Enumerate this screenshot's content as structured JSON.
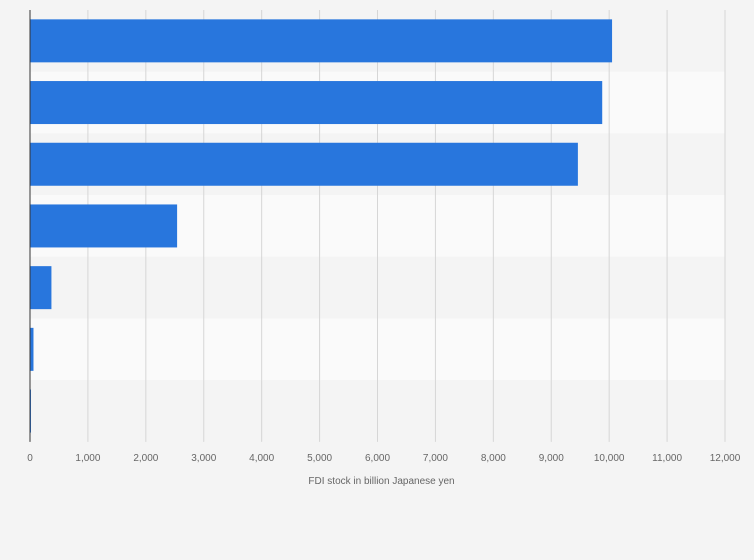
{
  "chart_data": {
    "type": "bar",
    "orientation": "horizontal",
    "categories": [
      "",
      "",
      "",
      "",
      "",
      "",
      ""
    ],
    "values": [
      10050,
      9880,
      9460,
      2540,
      370,
      60,
      15
    ],
    "xlabel": "FDI stock in billion Japanese yen",
    "xlim": [
      0,
      12000
    ],
    "x_ticks": [
      0,
      1000,
      2000,
      3000,
      4000,
      5000,
      6000,
      7000,
      8000,
      9000,
      10000,
      11000,
      12000
    ],
    "x_tick_labels": [
      "0",
      "1,000",
      "2,000",
      "3,000",
      "4,000",
      "5,000",
      "6,000",
      "7,000",
      "8,000",
      "9,000",
      "10,000",
      "11,000",
      "12,000"
    ],
    "grid": true,
    "bar_color": "#2876dd",
    "band_colors": [
      "#f4f4f4",
      "#fafafa"
    ]
  }
}
